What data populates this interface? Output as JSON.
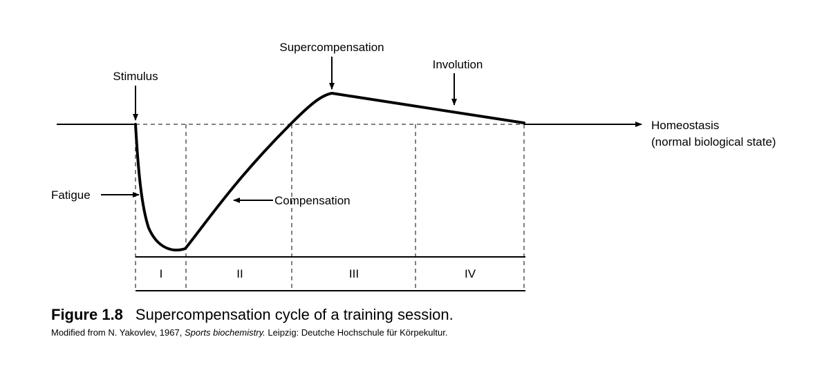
{
  "labels": {
    "stimulus": "Stimulus",
    "supercompensation": "Supercompensation",
    "involution": "Involution",
    "homeostasis": "Homeostasis",
    "homeostasis_note": "(normal biological state)",
    "fatigue": "Fatigue",
    "compensation": "Compensation"
  },
  "phases": [
    "I",
    "II",
    "III",
    "IV"
  ],
  "caption": {
    "figure_label": "Figure 1.8",
    "title": "Supercompensation cycle of a training session.",
    "source_prefix": "Modified from N. Yakovlev, 1967, ",
    "source_title": "Sports biochemistry.",
    "source_suffix": " Leipzig: Deutche Hochschule für Körpekultur."
  }
}
